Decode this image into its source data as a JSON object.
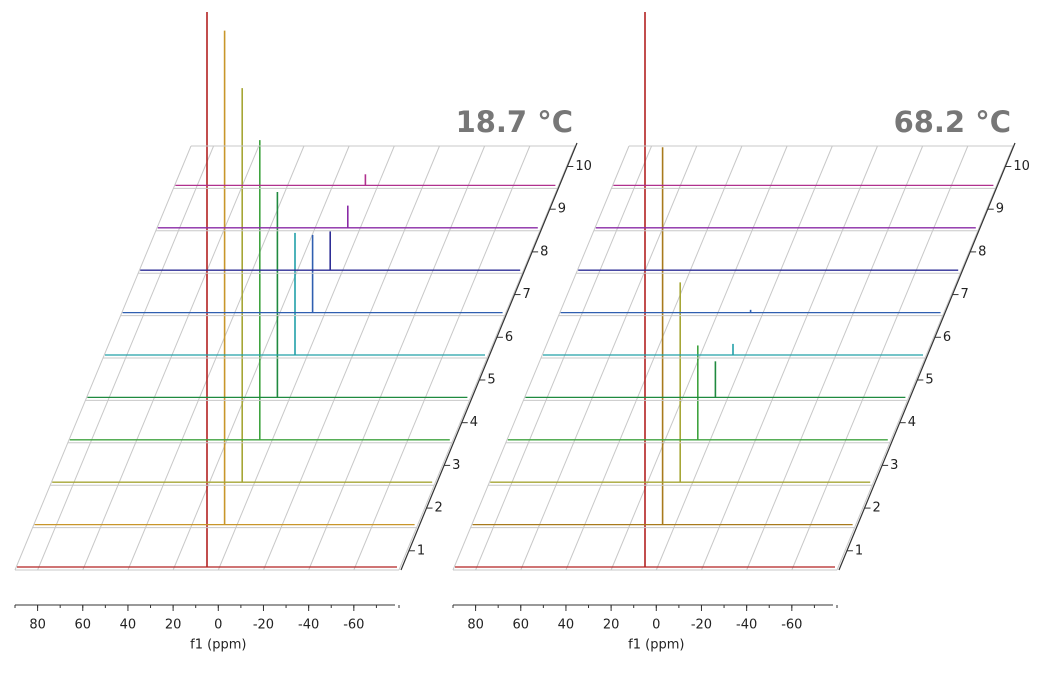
{
  "chart_data": [
    {
      "type": "waterfall",
      "title": "18.7 °C",
      "xlabel": "f1 (ppm)",
      "xlim": [
        90,
        -80
      ],
      "xticks": [
        80,
        60,
        40,
        20,
        0,
        -20,
        -40,
        -60
      ],
      "zticks": [
        1,
        2,
        3,
        4,
        5,
        6,
        7,
        8,
        9,
        10
      ],
      "ylim": [
        0,
        100
      ],
      "peak_x": 5,
      "series": [
        {
          "color": "#b22222",
          "intensity": 100
        },
        {
          "color": "#c8962a",
          "intensity": 89
        },
        {
          "color": "#a6a636",
          "intensity": 71
        },
        {
          "color": "#3fa33f",
          "intensity": 54
        },
        {
          "color": "#1f8a3f",
          "intensity": 37
        },
        {
          "color": "#22a0a8",
          "intensity": 22
        },
        {
          "color": "#2f5fb0",
          "intensity": 14
        },
        {
          "color": "#2e2e96",
          "intensity": 7
        },
        {
          "color": "#8a2aa6",
          "intensity": 4
        },
        {
          "color": "#b0308e",
          "intensity": 2
        }
      ]
    },
    {
      "type": "waterfall",
      "title": "68.2 °C",
      "xlabel": "f1 (ppm)",
      "xlim": [
        90,
        -80
      ],
      "xticks": [
        80,
        60,
        40,
        20,
        0,
        -20,
        -40,
        -60
      ],
      "zticks": [
        1,
        2,
        3,
        4,
        5,
        6,
        7,
        8,
        9,
        10
      ],
      "ylim": [
        0,
        100
      ],
      "peak_x": 5,
      "series": [
        {
          "color": "#b22222",
          "intensity": 100
        },
        {
          "color": "#a87a1c",
          "intensity": 68
        },
        {
          "color": "#a6a636",
          "intensity": 36
        },
        {
          "color": "#3fa33f",
          "intensity": 17
        },
        {
          "color": "#1f8a3f",
          "intensity": 6.5
        },
        {
          "color": "#22a0a8",
          "intensity": 2
        },
        {
          "color": "#2f5fb0",
          "intensity": 0.5
        },
        {
          "color": "#2e2e96",
          "intensity": 0
        },
        {
          "color": "#8a2aa6",
          "intensity": 0
        },
        {
          "color": "#b0308e",
          "intensity": 0
        }
      ]
    }
  ]
}
